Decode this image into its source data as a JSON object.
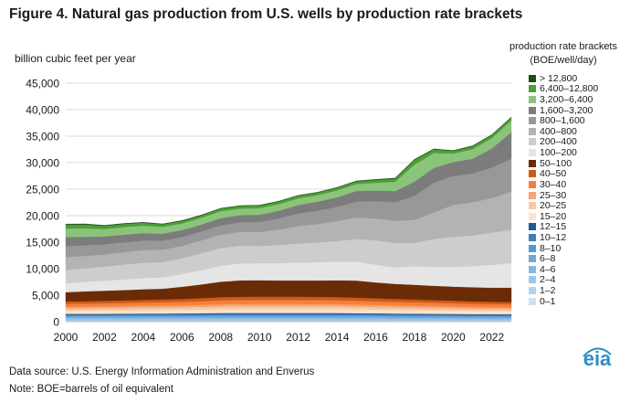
{
  "title": "Figure 4. Natural gas production from U.S. wells by production rate brackets",
  "source": "Data source: U.S. Energy Information Administration and Enverus",
  "note": "Note: BOE=barrels of oil equivalent",
  "logo": "eia",
  "chart_data": {
    "type": "area",
    "stacked": true,
    "title": "Figure 4. Natural gas production from U.S. wells by production rate brackets",
    "ylabel": "billion cubic feet per year",
    "xlabel": "",
    "ylim": [
      0,
      45000
    ],
    "xlim": [
      2000,
      2023
    ],
    "yticks": [
      "0",
      "5,000",
      "10,000",
      "15,000",
      "20,000",
      "25,000",
      "30,000",
      "35,000",
      "40,000",
      "45,000"
    ],
    "xticks": [
      "2000",
      "2002",
      "2004",
      "2006",
      "2008",
      "2010",
      "2012",
      "2014",
      "2016",
      "2018",
      "2020",
      "2022"
    ],
    "grid": "horizontal",
    "legend_position": "right",
    "legend_title": [
      "production rate brackets",
      "(BOE/well/day)"
    ],
    "x": [
      2000,
      2001,
      2002,
      2003,
      2004,
      2005,
      2006,
      2007,
      2008,
      2009,
      2010,
      2011,
      2012,
      2013,
      2014,
      2015,
      2016,
      2017,
      2018,
      2019,
      2020,
      2021,
      2022,
      2023
    ],
    "series": [
      {
        "name": "0–1",
        "color": "#cfe2f3",
        "values": [
          130,
          130,
          130,
          130,
          130,
          130,
          130,
          130,
          130,
          130,
          130,
          130,
          130,
          130,
          130,
          130,
          130,
          120,
          120,
          120,
          110,
          110,
          110,
          110
        ]
      },
      {
        "name": "1–2",
        "color": "#b4d3ee",
        "values": [
          110,
          110,
          110,
          110,
          110,
          110,
          110,
          110,
          110,
          110,
          110,
          110,
          110,
          110,
          110,
          110,
          110,
          100,
          100,
          100,
          100,
          100,
          100,
          100
        ]
      },
      {
        "name": "2–4",
        "color": "#9dc5e8",
        "values": [
          300,
          300,
          300,
          300,
          300,
          300,
          300,
          300,
          310,
          310,
          310,
          310,
          310,
          310,
          310,
          300,
          300,
          290,
          290,
          290,
          280,
          280,
          270,
          270
        ]
      },
      {
        "name": "4–6",
        "color": "#85b6e1",
        "values": [
          260,
          260,
          260,
          260,
          270,
          270,
          270,
          270,
          280,
          280,
          280,
          280,
          280,
          280,
          280,
          280,
          270,
          270,
          260,
          260,
          260,
          250,
          250,
          250
        ]
      },
      {
        "name": "6–8",
        "color": "#6ea7da",
        "values": [
          210,
          210,
          210,
          210,
          220,
          220,
          220,
          220,
          230,
          230,
          230,
          230,
          230,
          230,
          230,
          230,
          220,
          220,
          220,
          210,
          210,
          210,
          200,
          200
        ]
      },
      {
        "name": "8–10",
        "color": "#5898d2",
        "values": [
          170,
          170,
          170,
          180,
          180,
          180,
          190,
          190,
          200,
          200,
          200,
          200,
          200,
          200,
          200,
          190,
          190,
          190,
          180,
          180,
          180,
          170,
          170,
          170
        ]
      },
      {
        "name": "10–12",
        "color": "#3f80c0",
        "values": [
          150,
          150,
          150,
          160,
          160,
          160,
          170,
          170,
          180,
          180,
          180,
          180,
          180,
          180,
          180,
          170,
          170,
          170,
          160,
          160,
          160,
          150,
          150,
          150
        ]
      },
      {
        "name": "12–15",
        "color": "#1f5a94",
        "values": [
          150,
          150,
          160,
          160,
          170,
          170,
          180,
          190,
          200,
          200,
          200,
          200,
          200,
          200,
          200,
          190,
          190,
          180,
          180,
          170,
          170,
          160,
          160,
          160
        ]
      },
      {
        "name": "15–20",
        "color": "#fde2cc",
        "values": [
          600,
          610,
          620,
          630,
          650,
          660,
          680,
          700,
          730,
          740,
          750,
          750,
          750,
          740,
          740,
          730,
          700,
          680,
          660,
          640,
          620,
          600,
          590,
          580
        ]
      },
      {
        "name": "20–25",
        "color": "#fbc6a2",
        "values": [
          400,
          410,
          420,
          430,
          440,
          450,
          460,
          480,
          500,
          510,
          510,
          510,
          510,
          500,
          500,
          490,
          470,
          460,
          440,
          430,
          420,
          400,
          390,
          380
        ]
      },
      {
        "name": "25–30",
        "color": "#f8a56f",
        "values": [
          330,
          340,
          350,
          360,
          370,
          380,
          390,
          410,
          430,
          440,
          440,
          440,
          440,
          430,
          430,
          420,
          400,
          390,
          380,
          370,
          360,
          350,
          340,
          330
        ]
      },
      {
        "name": "30–40",
        "color": "#f28140",
        "values": [
          560,
          570,
          590,
          610,
          620,
          640,
          660,
          700,
          740,
          760,
          770,
          770,
          770,
          760,
          750,
          730,
          700,
          680,
          660,
          640,
          620,
          600,
          580,
          570
        ]
      },
      {
        "name": "40–50",
        "color": "#cf5a14",
        "values": [
          450,
          460,
          470,
          480,
          500,
          510,
          530,
          560,
          600,
          610,
          620,
          620,
          620,
          610,
          600,
          590,
          560,
          540,
          520,
          500,
          480,
          470,
          450,
          440
        ]
      },
      {
        "name": "50–100",
        "color": "#6b2b06",
        "values": [
          1750,
          1850,
          1900,
          1950,
          2000,
          2050,
          2300,
          2600,
          2900,
          3100,
          3100,
          3050,
          3050,
          3100,
          3150,
          3200,
          3000,
          2850,
          2800,
          2700,
          2650,
          2650,
          2650,
          2700
        ]
      },
      {
        "name": "100–200",
        "color": "#e5e5e5",
        "values": [
          1700,
          1800,
          1900,
          2000,
          2100,
          2150,
          2400,
          2700,
          3000,
          3200,
          3200,
          3250,
          3350,
          3450,
          3500,
          3550,
          3350,
          3100,
          3500,
          3550,
          3700,
          4000,
          4300,
          4650
        ]
      },
      {
        "name": "200–400",
        "color": "#cdcdcd",
        "values": [
          2500,
          2550,
          2650,
          2800,
          2900,
          2900,
          3000,
          3200,
          3350,
          3350,
          3250,
          3450,
          3600,
          3700,
          3900,
          4300,
          4600,
          4600,
          4400,
          5300,
          5700,
          5800,
          6100,
          6300
        ]
      },
      {
        "name": "400–800",
        "color": "#b3b3b3",
        "values": [
          2400,
          2350,
          2300,
          2350,
          2400,
          2300,
          2300,
          2400,
          2500,
          2600,
          2650,
          2900,
          3300,
          3500,
          3750,
          4050,
          4100,
          4200,
          4350,
          5000,
          6000,
          6250,
          6500,
          7200
        ]
      },
      {
        "name": "800–1,600",
        "color": "#989898",
        "values": [
          2100,
          2000,
          1900,
          1850,
          1800,
          1700,
          1700,
          1700,
          1800,
          1800,
          1900,
          2100,
          2400,
          2500,
          2700,
          3000,
          3300,
          3500,
          4500,
          5600,
          5500,
          5400,
          5800,
          6200
        ]
      },
      {
        "name": "1,600–3,200",
        "color": "#7c7c7c",
        "values": [
          1700,
          1600,
          1500,
          1450,
          1400,
          1300,
          1300,
          1300,
          1350,
          1350,
          1350,
          1450,
          1600,
          1700,
          1800,
          2000,
          2000,
          2100,
          2700,
          2800,
          2600,
          2800,
          3600,
          5000
        ]
      },
      {
        "name": "3,200–6,400",
        "color": "#8cc37a",
        "values": [
          1600,
          1600,
          1400,
          1450,
          1400,
          1300,
          1250,
          1250,
          1300,
          1250,
          1250,
          1250,
          1250,
          1250,
          1300,
          1300,
          1450,
          1750,
          3200,
          2800,
          1600,
          1800,
          1950,
          2200
        ]
      },
      {
        "name": "6,400–12,800",
        "color": "#4c9e36",
        "values": [
          730,
          720,
          600,
          580,
          550,
          500,
          480,
          480,
          500,
          490,
          500,
          500,
          490,
          480,
          500,
          520,
          550,
          600,
          900,
          700,
          500,
          550,
          550,
          550
        ]
      },
      {
        "name": "> 12,800",
        "color": "#1f4e14",
        "values": [
          110,
          110,
          90,
          90,
          80,
          70,
          60,
          60,
          60,
          60,
          60,
          60,
          60,
          60,
          60,
          70,
          80,
          90,
          100,
          90,
          80,
          90,
          90,
          90
        ]
      }
    ]
  }
}
